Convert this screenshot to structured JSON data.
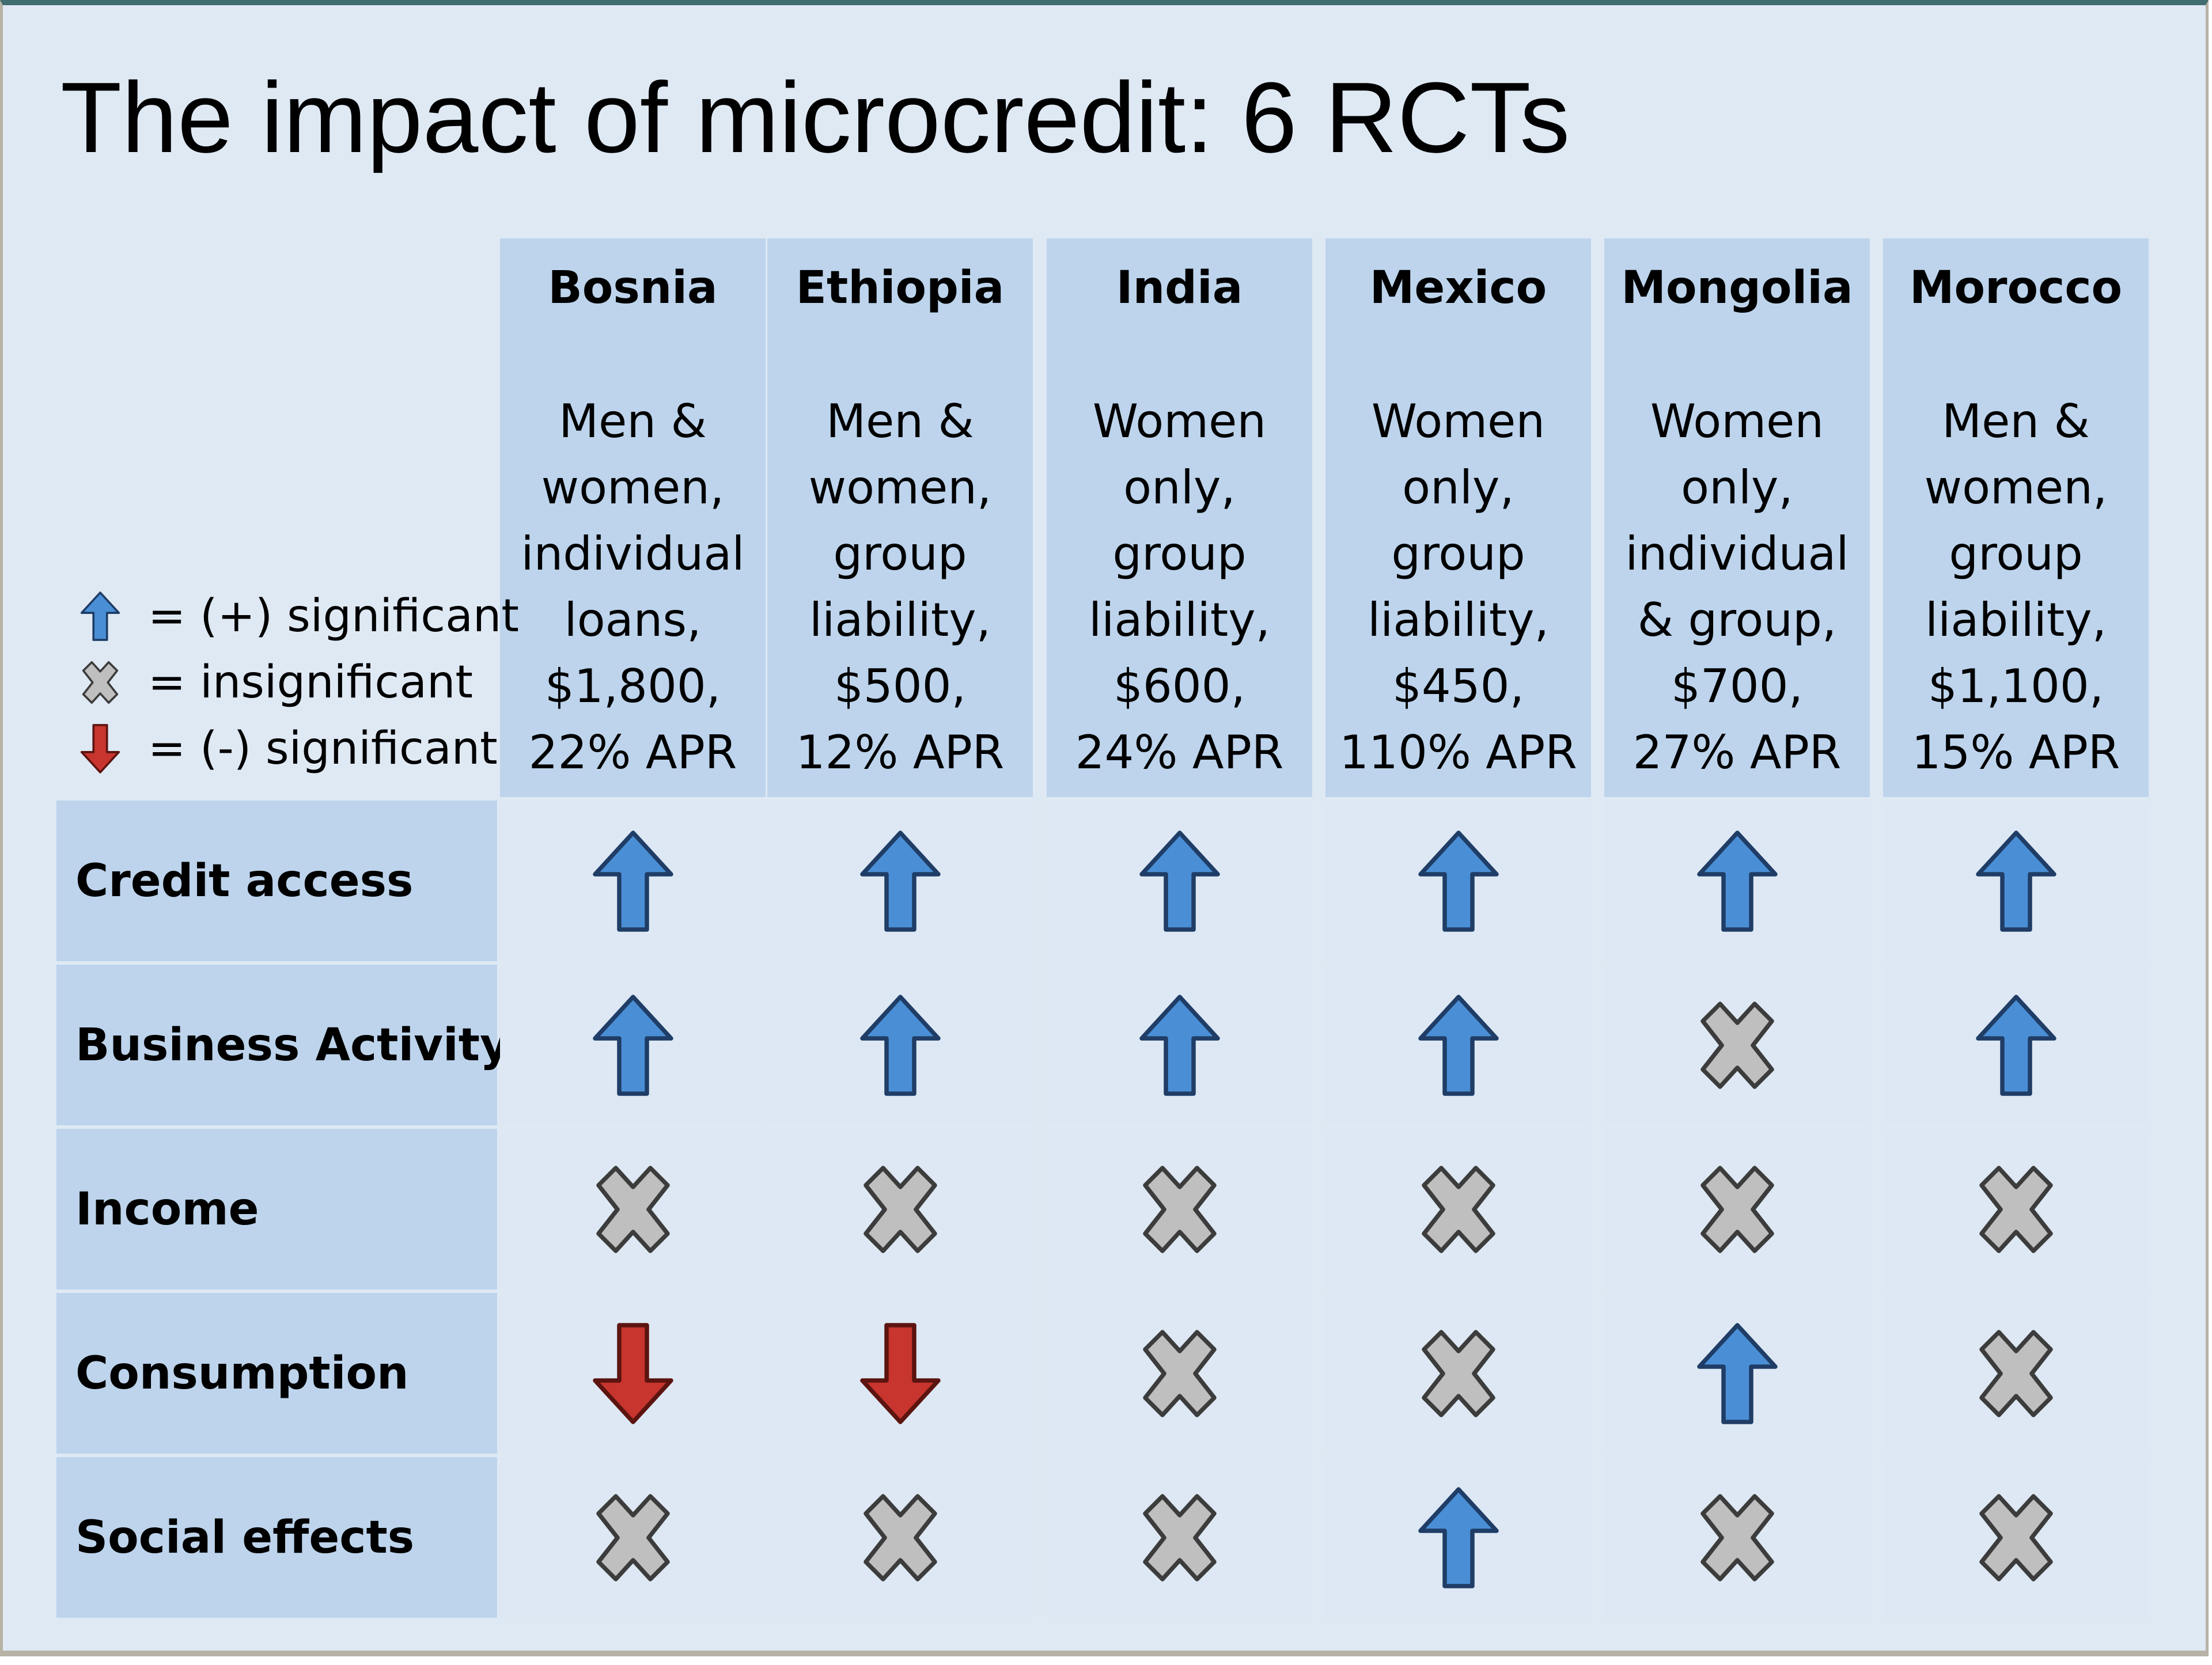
{
  "title": "The impact of microcredit: 6 RCTs",
  "legend": [
    {
      "symbol": "up-arrow-icon",
      "label": "= (+) significant"
    },
    {
      "symbol": "x-icon",
      "label": "= insignificant"
    },
    {
      "symbol": "down-arrow-icon",
      "label": "= (-) significant"
    }
  ],
  "countries": [
    {
      "name": "Bosnia",
      "lines": [
        "Men &",
        "women,",
        "individual",
        "loans,",
        "$1,800,",
        "22% APR"
      ]
    },
    {
      "name": "Ethiopia",
      "lines": [
        "Men &",
        "women,",
        "group",
        "liability,",
        "$500,",
        "12% APR"
      ]
    },
    {
      "name": "India",
      "lines": [
        "Women",
        "only,",
        "group",
        "liability,",
        "$600,",
        "24% APR"
      ]
    },
    {
      "name": "Mexico",
      "lines": [
        "Women",
        "only,",
        "group",
        "liability,",
        "$450,",
        "110% APR"
      ]
    },
    {
      "name": "Mongolia",
      "lines": [
        "Women",
        "only,",
        "individual",
        "& group,",
        "$700,",
        "27% APR"
      ]
    },
    {
      "name": "Morocco",
      "lines": [
        "Men &",
        "women,",
        "group",
        "liability,",
        "$1,100,",
        "15% APR"
      ]
    }
  ],
  "outcomes": [
    {
      "label": "Credit access",
      "results": [
        "up",
        "up",
        "up",
        "up",
        "up",
        "up"
      ]
    },
    {
      "label": "Business Activity",
      "results": [
        "up",
        "up",
        "up",
        "up",
        "x",
        "up"
      ]
    },
    {
      "label": "Income",
      "results": [
        "x",
        "x",
        "x",
        "x",
        "x",
        "x"
      ]
    },
    {
      "label": "Consumption",
      "results": [
        "down",
        "down",
        "x",
        "x",
        "up",
        "x"
      ]
    },
    {
      "label": "Social effects",
      "results": [
        "x",
        "x",
        "x",
        "up",
        "x",
        "x"
      ]
    }
  ],
  "colors": {
    "up": "#4a8fd6",
    "up_stroke": "#1f3d66",
    "x": "#bfbfbf",
    "x_stroke": "#3c3c3c",
    "down": "#c7352e",
    "down_stroke": "#5c1410"
  }
}
